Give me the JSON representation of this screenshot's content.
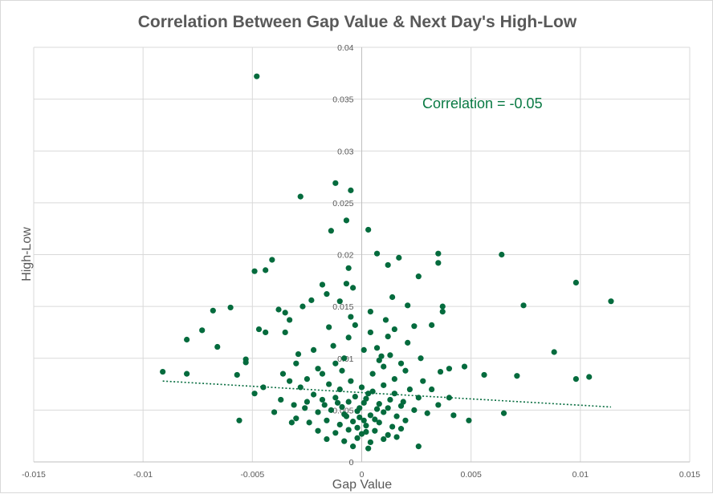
{
  "chart_data": {
    "type": "scatter",
    "title": "Correlation Between Gap Value & Next Day's High-Low",
    "xlabel": "Gap Value",
    "ylabel": "High-Low",
    "annotation": "Correlation = -0.05",
    "xlim": [
      -0.015,
      0.015
    ],
    "ylim": [
      0,
      0.04
    ],
    "x_ticks": [
      -0.015,
      -0.01,
      -0.005,
      0,
      0.005,
      0.01,
      0.015
    ],
    "x_tick_labels": [
      "-0.015",
      "-0.01",
      "-0.005",
      "0",
      "0.005",
      "0.01",
      "0.015"
    ],
    "y_ticks": [
      0,
      0.005,
      0.01,
      0.015,
      0.02,
      0.025,
      0.03,
      0.035,
      0.04
    ],
    "y_tick_labels": [
      "0",
      "0.005",
      "0.01",
      "0.015",
      "0.02",
      "0.025",
      "0.03",
      "0.035",
      "0.04"
    ],
    "grid": true,
    "marker_color": "#046b3d",
    "trendline": {
      "x": [
        -0.0091,
        0.0114
      ],
      "y": [
        0.0078,
        0.0053
      ]
    },
    "series": [
      {
        "points": [
          [
            -0.0048,
            0.0372
          ],
          [
            -0.0012,
            0.0269
          ],
          [
            -0.0005,
            0.0262
          ],
          [
            -0.0028,
            0.0256
          ],
          [
            -0.0007,
            0.0233
          ],
          [
            0.0003,
            0.0224
          ],
          [
            -0.0014,
            0.0223
          ],
          [
            0.0007,
            0.0201
          ],
          [
            0.0035,
            0.0201
          ],
          [
            0.0064,
            0.02
          ],
          [
            0.0017,
            0.0197
          ],
          [
            -0.0041,
            0.0195
          ],
          [
            0.0012,
            0.019
          ],
          [
            0.0035,
            0.0192
          ],
          [
            -0.0006,
            0.0187
          ],
          [
            -0.0049,
            0.0184
          ],
          [
            -0.0044,
            0.0185
          ],
          [
            0.0026,
            0.0179
          ],
          [
            0.0098,
            0.0173
          ],
          [
            -0.0007,
            0.0172
          ],
          [
            -0.0004,
            0.0168
          ],
          [
            -0.0018,
            0.0171
          ],
          [
            0.0014,
            0.0159
          ],
          [
            -0.0016,
            0.0162
          ],
          [
            0.0114,
            0.0155
          ],
          [
            -0.001,
            0.0155
          ],
          [
            -0.0023,
            0.0156
          ],
          [
            0.0037,
            0.015
          ],
          [
            0.0074,
            0.0151
          ],
          [
            -0.006,
            0.0149
          ],
          [
            -0.0027,
            0.015
          ],
          [
            0.0021,
            0.0151
          ],
          [
            -0.0038,
            0.0147
          ],
          [
            -0.0068,
            0.0146
          ],
          [
            -0.0035,
            0.0144
          ],
          [
            0.0004,
            0.0145
          ],
          [
            0.0037,
            0.0145
          ],
          [
            -0.0005,
            0.014
          ],
          [
            0.0011,
            0.0137
          ],
          [
            -0.0033,
            0.0137
          ],
          [
            -0.0047,
            0.0128
          ],
          [
            -0.0044,
            0.0125
          ],
          [
            -0.0073,
            0.0127
          ],
          [
            -0.008,
            0.0118
          ],
          [
            0.0032,
            0.0132
          ],
          [
            0.0024,
            0.0131
          ],
          [
            -0.0015,
            0.013
          ],
          [
            0.0015,
            0.0128
          ],
          [
            -0.0035,
            0.0125
          ],
          [
            0.0012,
            0.0121
          ],
          [
            -0.0066,
            0.0111
          ],
          [
            0.0088,
            0.0106
          ],
          [
            -0.0053,
            0.0099
          ],
          [
            -0.0053,
            0.0096
          ],
          [
            0.0027,
            0.01
          ],
          [
            0.0009,
            0.0102
          ],
          [
            -0.0029,
            0.0104
          ],
          [
            0.0047,
            0.0092
          ],
          [
            -0.0091,
            0.0087
          ],
          [
            -0.008,
            0.0085
          ],
          [
            0.0056,
            0.0084
          ],
          [
            0.0071,
            0.0083
          ],
          [
            0.0098,
            0.008
          ],
          [
            0.0104,
            0.0082
          ],
          [
            -0.0057,
            0.0084
          ],
          [
            0.004,
            0.009
          ],
          [
            0.0036,
            0.0087
          ],
          [
            -0.0036,
            0.0085
          ],
          [
            -0.0049,
            0.0066
          ],
          [
            -0.0045,
            0.0072
          ],
          [
            0.0065,
            0.0047
          ],
          [
            0.0049,
            0.004
          ],
          [
            -0.0056,
            0.004
          ],
          [
            0.0026,
            0.0015
          ],
          [
            -0.0032,
            0.0038
          ],
          [
            0.0042,
            0.0045
          ],
          [
            -0.0025,
            0.008
          ],
          [
            -0.002,
            0.009
          ],
          [
            -0.0012,
            0.0095
          ],
          [
            -0.0008,
            0.01
          ],
          [
            0.0005,
            0.0085
          ],
          [
            0.001,
            0.0092
          ],
          [
            0.0015,
            0.008
          ],
          [
            0.002,
            0.0088
          ],
          [
            -0.0015,
            0.0075
          ],
          [
            -0.001,
            0.007
          ],
          [
            -0.0005,
            0.0078
          ],
          [
            0.0,
            0.0072
          ],
          [
            0.0005,
            0.0068
          ],
          [
            0.001,
            0.0074
          ],
          [
            0.0015,
            0.0066
          ],
          [
            0.0022,
            0.007
          ],
          [
            -0.0022,
            0.0065
          ],
          [
            -0.0018,
            0.006
          ],
          [
            -0.0012,
            0.0062
          ],
          [
            -0.0006,
            0.0058
          ],
          [
            0.0002,
            0.0061
          ],
          [
            0.0008,
            0.0056
          ],
          [
            0.0013,
            0.006
          ],
          [
            0.0018,
            0.0054
          ],
          [
            -0.0026,
            0.0052
          ],
          [
            -0.002,
            0.0048
          ],
          [
            -0.0014,
            0.005
          ],
          [
            -0.0008,
            0.0046
          ],
          [
            -0.0002,
            0.0049
          ],
          [
            0.0004,
            0.0045
          ],
          [
            0.001,
            0.0048
          ],
          [
            0.0016,
            0.0044
          ],
          [
            0.0024,
            0.005
          ],
          [
            -0.003,
            0.0042
          ],
          [
            -0.0024,
            0.0038
          ],
          [
            -0.0016,
            0.004
          ],
          [
            -0.001,
            0.0036
          ],
          [
            -0.0004,
            0.0039
          ],
          [
            0.0002,
            0.0035
          ],
          [
            0.0008,
            0.0038
          ],
          [
            0.0014,
            0.0034
          ],
          [
            0.002,
            0.004
          ],
          [
            -0.002,
            0.003
          ],
          [
            -0.0012,
            0.0028
          ],
          [
            -0.0006,
            0.0031
          ],
          [
            0.0,
            0.0027
          ],
          [
            0.0006,
            0.003
          ],
          [
            0.0012,
            0.0026
          ],
          [
            0.0018,
            0.0032
          ],
          [
            -0.0016,
            0.0022
          ],
          [
            -0.0008,
            0.002
          ],
          [
            -0.0002,
            0.0023
          ],
          [
            0.0004,
            0.0019
          ],
          [
            0.001,
            0.0022
          ],
          [
            0.0016,
            0.0024
          ],
          [
            -0.0004,
            0.0015
          ],
          [
            0.0003,
            0.0013
          ],
          [
            -0.0001,
            0.0052
          ],
          [
            0.0001,
            0.0057
          ],
          [
            -0.0003,
            0.0063
          ],
          [
            0.0003,
            0.0066
          ],
          [
            -0.0001,
            0.0043
          ],
          [
            0.0001,
            0.004
          ],
          [
            -0.0002,
            0.0033
          ],
          [
            0.0002,
            0.0029
          ],
          [
            -0.0009,
            0.0053
          ],
          [
            0.0007,
            0.0051
          ],
          [
            -0.0007,
            0.0044
          ],
          [
            0.0006,
            0.0041
          ],
          [
            -0.0011,
            0.0057
          ],
          [
            0.0012,
            0.0052
          ],
          [
            -0.0017,
            0.0055
          ],
          [
            0.0019,
            0.0058
          ],
          [
            -0.0025,
            0.0058
          ],
          [
            0.0026,
            0.0062
          ],
          [
            -0.0031,
            0.0055
          ],
          [
            0.003,
            0.0047
          ],
          [
            -0.0037,
            0.006
          ],
          [
            0.0035,
            0.0055
          ],
          [
            -0.004,
            0.0048
          ],
          [
            0.004,
            0.0062
          ],
          [
            -0.0028,
            0.0072
          ],
          [
            0.0028,
            0.0078
          ],
          [
            -0.0033,
            0.0078
          ],
          [
            0.0032,
            0.007
          ],
          [
            -0.0018,
            0.0085
          ],
          [
            0.0018,
            0.0095
          ],
          [
            -0.0009,
            0.0088
          ],
          [
            0.0007,
            0.011
          ],
          [
            -0.0006,
            0.012
          ],
          [
            0.0004,
            0.0125
          ],
          [
            -0.0003,
            0.0132
          ],
          [
            0.0001,
            0.0108
          ],
          [
            -0.0013,
            0.0112
          ],
          [
            0.0021,
            0.0115
          ],
          [
            -0.0022,
            0.0108
          ],
          [
            0.0013,
            0.0103
          ],
          [
            -0.003,
            0.0095
          ],
          [
            0.0008,
            0.0098
          ]
        ]
      }
    ]
  }
}
